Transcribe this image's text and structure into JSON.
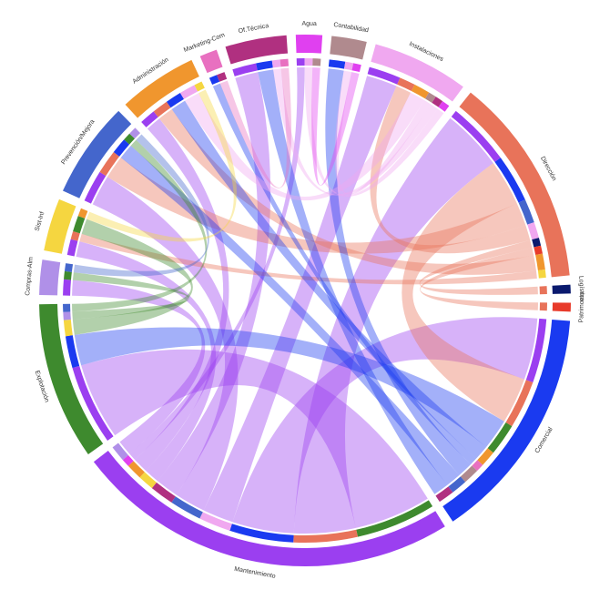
{
  "chart_data": {
    "type": "chord",
    "sectors": [
      {
        "name": "Agua",
        "color": "#e040f0"
      },
      {
        "name": "Contabilidad",
        "color": "#b08a8e"
      },
      {
        "name": "Instalaciones",
        "color": "#f0a8f0"
      },
      {
        "name": "Dirección",
        "color": "#e8735a"
      },
      {
        "name": "Logística",
        "color": "#0a1a6e"
      },
      {
        "name": "Patrimonio",
        "color": "#e83a2a"
      },
      {
        "name": "Comercial",
        "color": "#1a3af0"
      },
      {
        "name": "Mantenimiento",
        "color": "#9b3ff0"
      },
      {
        "name": "Explotación",
        "color": "#3e8a2e"
      },
      {
        "name": "Compras-Alm",
        "color": "#b090e8"
      },
      {
        "name": "Sist-Inf",
        "color": "#f5d640"
      },
      {
        "name": "Prevención/Mejora",
        "color": "#4466cc"
      },
      {
        "name": "Administración",
        "color": "#f0962e"
      },
      {
        "name": "Marketing-Com",
        "color": "#e870c0"
      },
      {
        "name": "Of.Técnica",
        "color": "#b03080"
      }
    ],
    "links": [
      {
        "source": 7,
        "target": 8,
        "value": 10
      },
      {
        "source": 7,
        "target": 3,
        "value": 8
      },
      {
        "source": 7,
        "target": 6,
        "value": 8
      },
      {
        "source": 7,
        "target": 2,
        "value": 4
      },
      {
        "source": 7,
        "target": 11,
        "value": 4
      },
      {
        "source": 7,
        "target": 14,
        "value": 3
      },
      {
        "source": 7,
        "target": 10,
        "value": 2
      },
      {
        "source": 7,
        "target": 12,
        "value": 2
      },
      {
        "source": 7,
        "target": 0,
        "value": 1
      },
      {
        "source": 7,
        "target": 9,
        "value": 2
      },
      {
        "source": 3,
        "target": 6,
        "value": 6
      },
      {
        "source": 3,
        "target": 11,
        "value": 3
      },
      {
        "source": 3,
        "target": 2,
        "value": 2
      },
      {
        "source": 3,
        "target": 4,
        "value": 1
      },
      {
        "source": 3,
        "target": 5,
        "value": 1
      },
      {
        "source": 3,
        "target": 12,
        "value": 2
      },
      {
        "source": 3,
        "target": 10,
        "value": 1
      },
      {
        "source": 6,
        "target": 8,
        "value": 4
      },
      {
        "source": 6,
        "target": 12,
        "value": 2
      },
      {
        "source": 6,
        "target": 13,
        "value": 1
      },
      {
        "source": 6,
        "target": 1,
        "value": 2
      },
      {
        "source": 6,
        "target": 11,
        "value": 2
      },
      {
        "source": 6,
        "target": 14,
        "value": 2
      },
      {
        "source": 8,
        "target": 10,
        "value": 2
      },
      {
        "source": 8,
        "target": 9,
        "value": 1
      },
      {
        "source": 8,
        "target": 11,
        "value": 1
      },
      {
        "source": 2,
        "target": 12,
        "value": 2
      },
      {
        "source": 2,
        "target": 1,
        "value": 1
      },
      {
        "source": 2,
        "target": 14,
        "value": 1
      },
      {
        "source": 2,
        "target": 0,
        "value": 1
      },
      {
        "source": 11,
        "target": 9,
        "value": 1
      },
      {
        "source": 10,
        "target": 12,
        "value": 1
      },
      {
        "source": 13,
        "target": 14,
        "value": 1
      },
      {
        "source": 0,
        "target": 1,
        "value": 1
      }
    ]
  }
}
